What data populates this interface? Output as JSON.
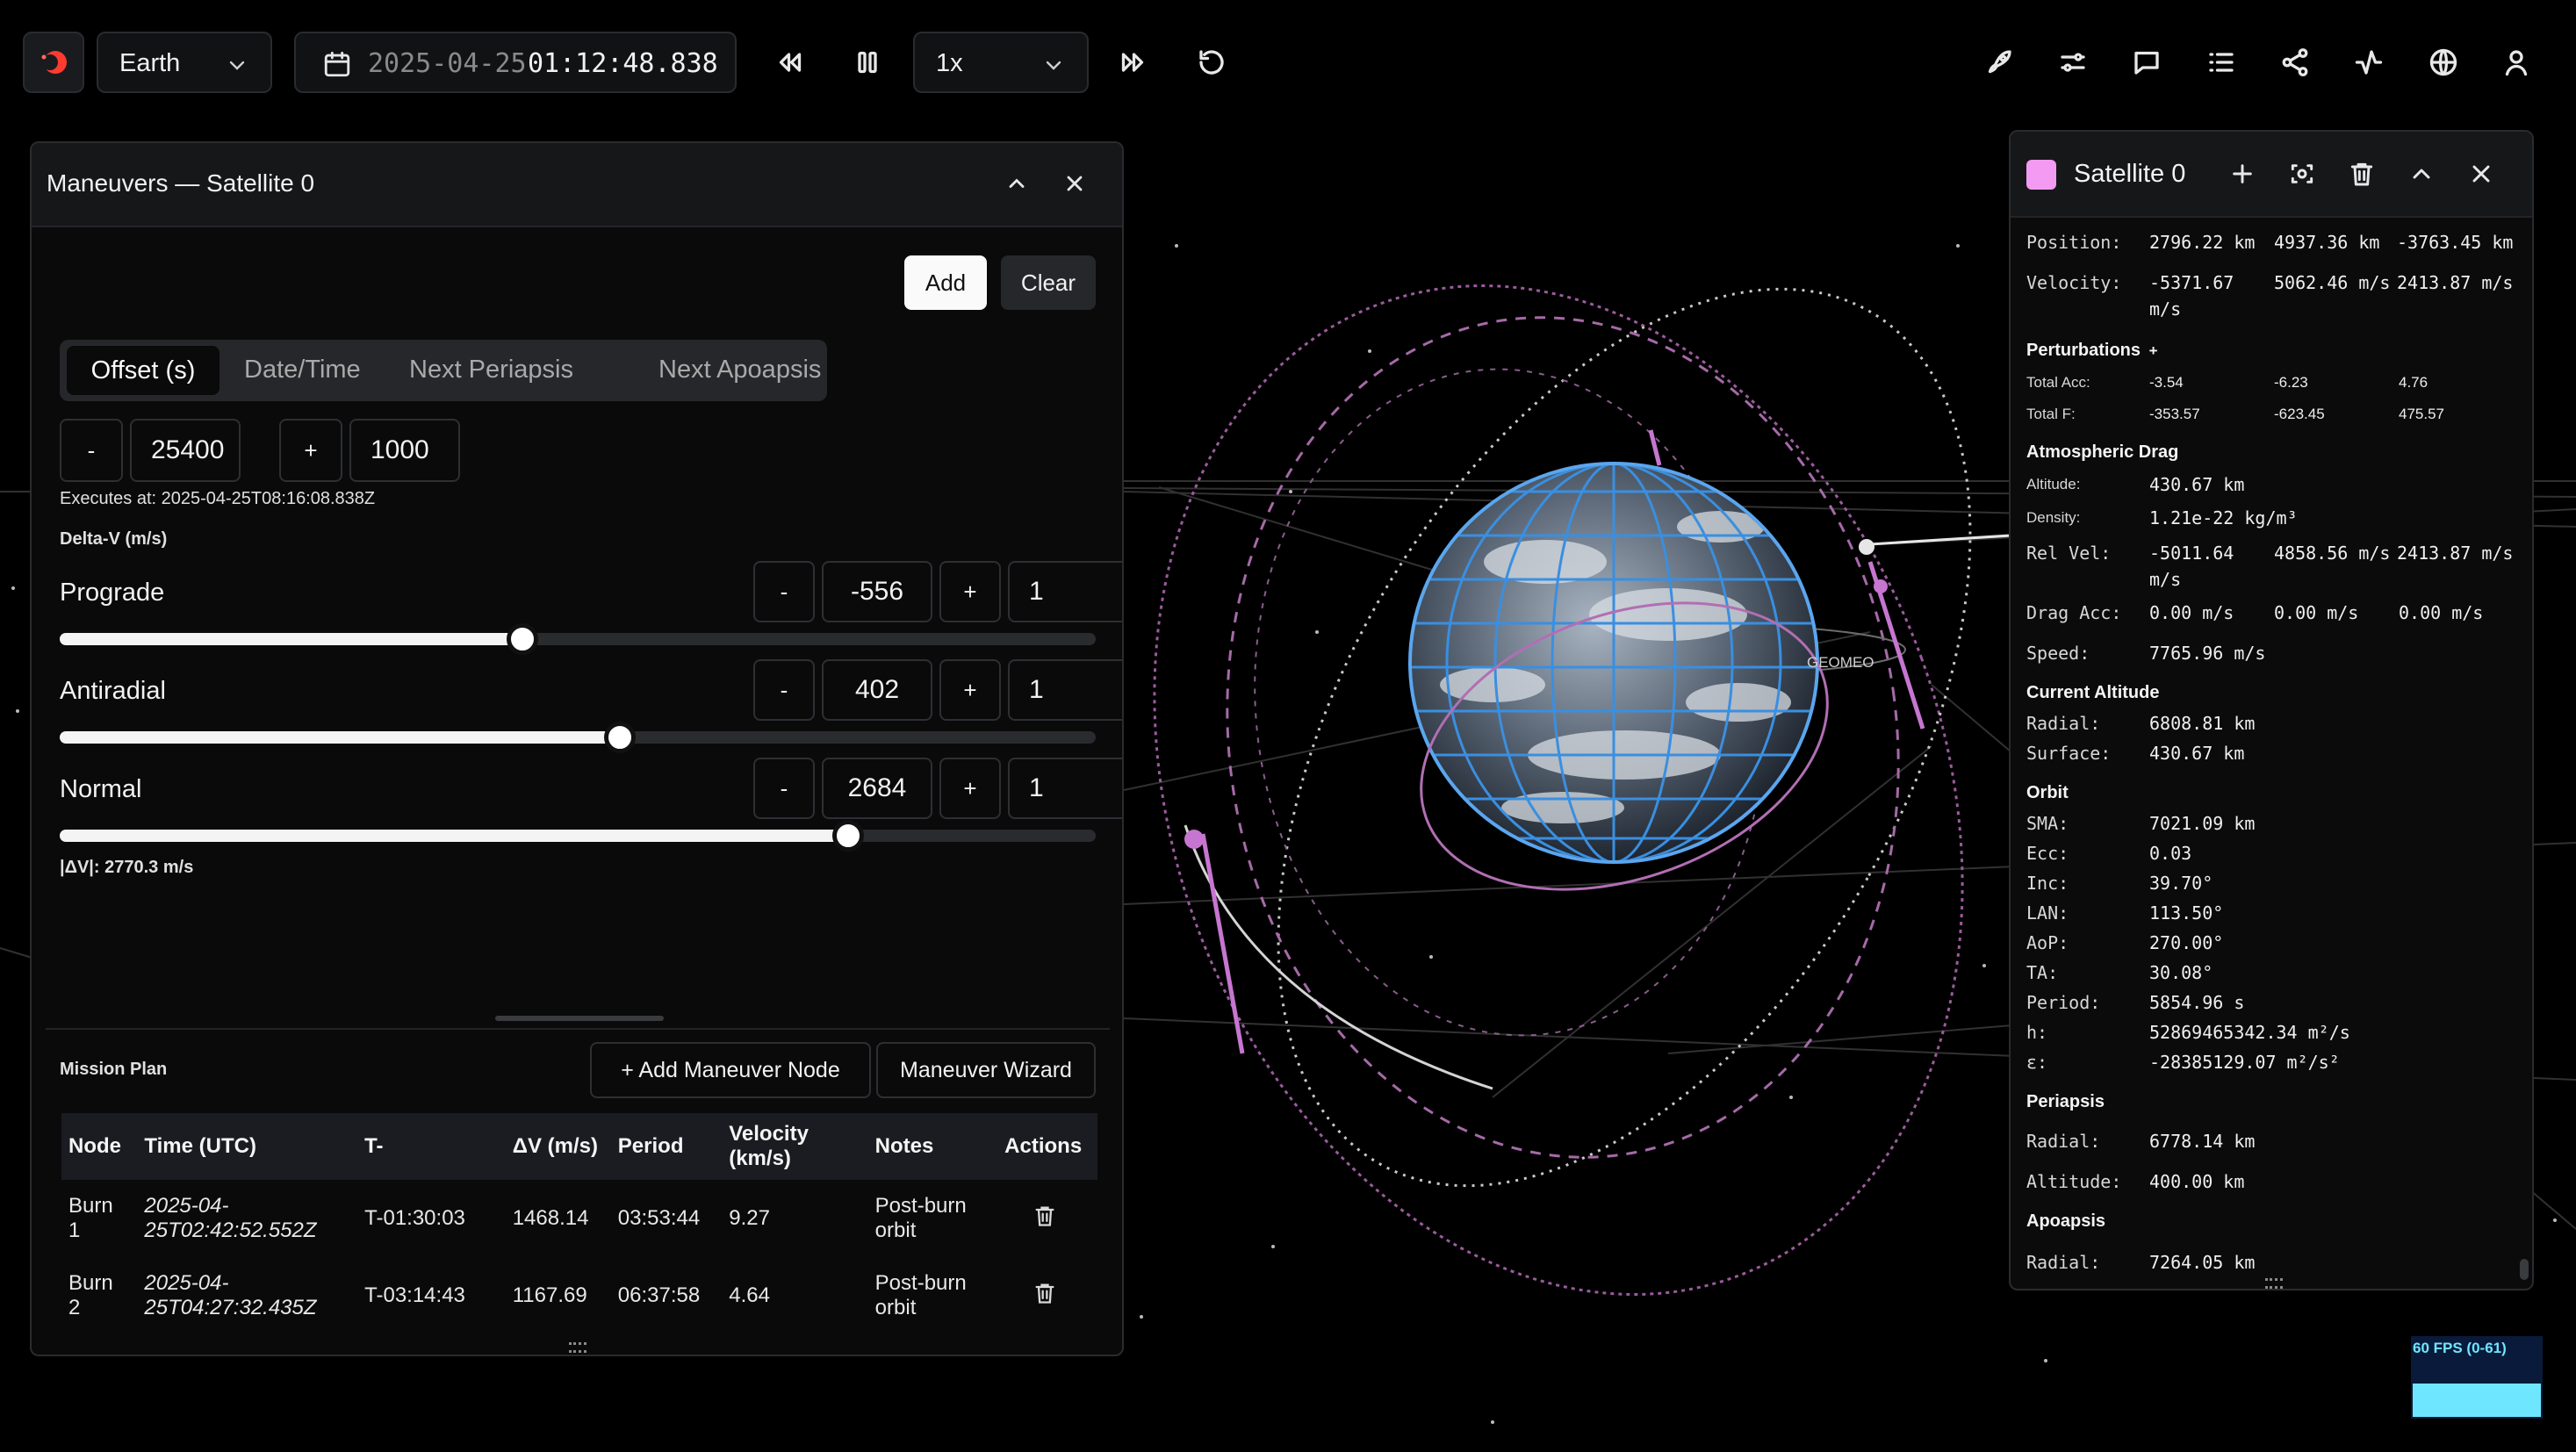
{
  "toolbar": {
    "body_select": "Earth",
    "date": "2025-04-25",
    "time": "01:12:48.838",
    "speed": "1x",
    "icons": [
      "rocket-icon",
      "sliders-icon",
      "chat-icon",
      "list-icon",
      "share-icon",
      "activity-icon",
      "globe-icon",
      "user-icon"
    ]
  },
  "maneuvers": {
    "title": "Maneuvers — Satellite 0",
    "add": "Add",
    "clear": "Clear",
    "tabs": [
      "Offset (s)",
      "Date/Time",
      "Next Periapsis",
      "Next Apoapsis"
    ],
    "offset": {
      "minus": "-",
      "value": "25400",
      "plus": "+",
      "step": "1000"
    },
    "executes_at": "Executes at: 2025-04-25T08:16:08.838Z",
    "delta_v_label": "Delta-V (m/s)",
    "components": [
      {
        "label": "Prograde",
        "minus": "-",
        "value": "-556",
        "plus": "+",
        "step": "1",
        "slider": 0.447
      },
      {
        "label": "Antiradial",
        "minus": "-",
        "value": "402",
        "plus": "+",
        "step": "1",
        "slider": 0.541
      },
      {
        "label": "Normal",
        "minus": "-",
        "value": "2684",
        "plus": "+",
        "step": "1",
        "slider": 0.761
      }
    ],
    "dv_total": "|ΔV|: 2770.3 m/s",
    "mission_plan": "Mission Plan",
    "add_node": "+ Add Maneuver Node",
    "wizard": "Maneuver Wizard",
    "table": {
      "headers": [
        "Node",
        "Time (UTC)",
        "T-",
        "ΔV (m/s)",
        "Period",
        "Velocity (km/s)",
        "Notes",
        "Actions"
      ],
      "rows": [
        [
          "Burn 1",
          "2025-04-25T02:42:52.552Z",
          "T-01:30:03",
          "1468.14",
          "03:53:44",
          "9.27",
          "Post-burn orbit"
        ],
        [
          "Burn 2",
          "2025-04-25T04:27:32.435Z",
          "T-03:14:43",
          "1167.69",
          "06:37:58",
          "4.64",
          "Post-burn orbit"
        ]
      ]
    }
  },
  "satellite": {
    "name": "Satellite 0",
    "color": "#f39af2",
    "position": {
      "label": "Position:",
      "x": "2796.22 km",
      "y": "4937.36 km",
      "z": "-3763.45 km"
    },
    "velocity": {
      "label": "Velocity:",
      "x1": "-5371.67",
      "x2": "m/s",
      "y": "5062.46 m/s",
      "z": "2413.87 m/s"
    },
    "perturbations": {
      "title": "Perturbations",
      "plus": "+",
      "total_acc": {
        "label": "Total Acc:",
        "x": "-3.54",
        "y": "-6.23",
        "z": "4.76"
      },
      "total_f": {
        "label": "Total F:",
        "x": "-353.57",
        "y": "-623.45",
        "z": "475.57"
      }
    },
    "drag": {
      "title": "Atmospheric Drag",
      "altitude": {
        "label": "Altitude:",
        "value": "430.67 km"
      },
      "density": {
        "label": "Density:",
        "value": "1.21e-22 kg/m³"
      },
      "rel_vel": {
        "label": "Rel Vel:",
        "x1": "-5011.64",
        "x2": "m/s",
        "y": "4858.56 m/s",
        "z": "2413.87 m/s"
      },
      "drag_acc": {
        "label": "Drag Acc:",
        "x": "0.00 m/s",
        "y": "0.00 m/s",
        "z": "0.00 m/s"
      },
      "speed": {
        "label": "Speed:",
        "value": "7765.96 m/s"
      }
    },
    "current_altitude": {
      "title": "Current Altitude",
      "radial": {
        "label": "Radial:",
        "value": "6808.81 km"
      },
      "surface": {
        "label": "Surface:",
        "value": "430.67 km"
      }
    },
    "orbit": {
      "title": "Orbit",
      "items": [
        {
          "label": "SMA:",
          "value": "7021.09 km"
        },
        {
          "label": "Ecc:",
          "value": "0.03"
        },
        {
          "label": "Inc:",
          "value": "39.70°"
        },
        {
          "label": "LAN:",
          "value": "113.50°"
        },
        {
          "label": "AoP:",
          "value": "270.00°"
        },
        {
          "label": "TA:",
          "value": "30.08°"
        },
        {
          "label": "Period:",
          "value": "5854.96 s"
        },
        {
          "label": "h:",
          "value": "52869465342.34 m²/s"
        },
        {
          "label": "ε:",
          "value": "-28385129.07 m²/s²"
        }
      ]
    },
    "periapsis": {
      "title": "Periapsis",
      "radial": {
        "label": "Radial:",
        "value": "6778.14 km"
      },
      "altitude": {
        "label": "Altitude:",
        "value": "400.00 km"
      }
    },
    "apoapsis": {
      "title": "Apoapsis",
      "radial": {
        "label": "Radial:",
        "value": "7264.05 km"
      }
    }
  },
  "scene": {
    "label_geo": "GEOMEO"
  },
  "fps": {
    "label": "60 FPS (0-61)"
  }
}
